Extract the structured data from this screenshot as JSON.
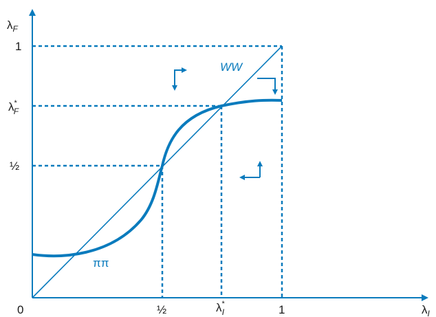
{
  "colors": {
    "curve": "#0a7bbd",
    "axes": "#0a7bbd",
    "text": "#1a1a1a"
  },
  "axes": {
    "y_label": "λ",
    "y_label_sub": "F",
    "x_label": "λ",
    "x_label_sub": "I",
    "origin_label": "0",
    "y_ticks": {
      "one": "1",
      "lambda_f_star": "λ",
      "lambda_f_star_sup": "*",
      "lambda_f_star_sub": "F",
      "half": "½"
    },
    "x_ticks": {
      "half": "½",
      "lambda_i_star": "λ",
      "lambda_i_star_sup": "*",
      "lambda_i_star_sub": "I",
      "one": "1"
    }
  },
  "curves": {
    "diagonal_label": "WW",
    "s_curve_label": "ππ"
  },
  "icons": [
    "arrow-up-right-icon",
    "arrow-right-down-icon",
    "arrow-left-up-icon",
    "arrow-right-down-icon"
  ]
}
